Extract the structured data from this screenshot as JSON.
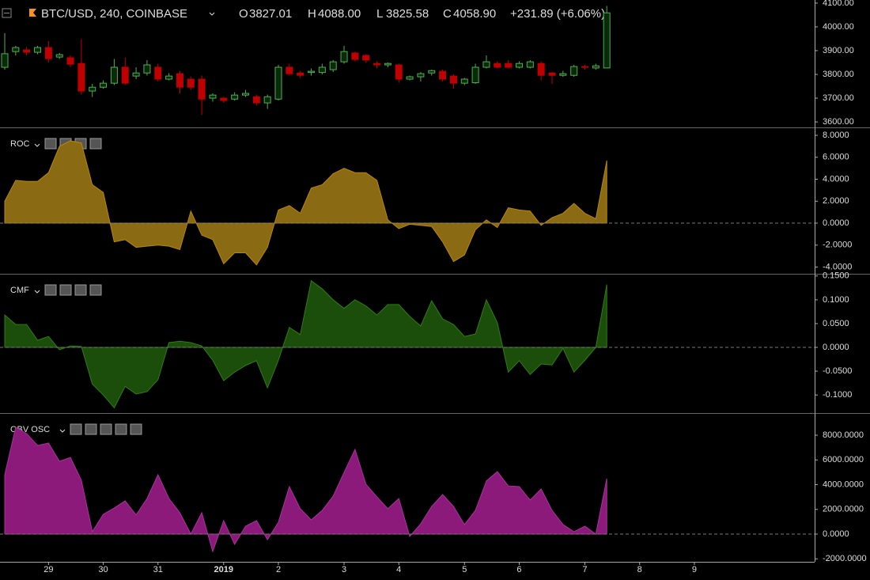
{
  "chart_data": [
    {
      "type": "candlestick",
      "title": "BTC/USD, 240, COINBASE",
      "ohlc": [
        {
          "label": "O",
          "value": "3827.01"
        },
        {
          "label": "H",
          "value": "4088.00"
        },
        {
          "label": "L",
          "value": "3825.58"
        },
        {
          "label": "C",
          "value": "4058.90"
        }
      ],
      "change": "+231.89 (+6.06%)",
      "up_color": "#4caf50",
      "down_color": "#c00000",
      "categories": [
        null,
        null,
        null,
        null,
        "29",
        null,
        null,
        null,
        null,
        "30",
        null,
        null,
        null,
        null,
        "31",
        null,
        null,
        null,
        null,
        null,
        "2019",
        null,
        null,
        null,
        null,
        "2",
        null,
        null,
        null,
        null,
        null,
        "3",
        null,
        null,
        null,
        null,
        "4",
        null,
        null,
        null,
        null,
        null,
        "5",
        null,
        null,
        null,
        null,
        "6",
        null,
        null,
        null,
        null,
        null,
        "7",
        null,
        null,
        null,
        null,
        "8",
        null,
        null,
        null,
        null,
        "9"
      ],
      "open": [
        3830,
        3896,
        3903,
        3893,
        3913,
        3873,
        3870,
        3846,
        3730,
        3746,
        3763,
        3830,
        3793,
        3806,
        3830,
        3780,
        3803,
        3780,
        3780,
        3700,
        3700,
        3696,
        3713,
        3706,
        3680,
        3696,
        3830,
        3806,
        3808,
        3808,
        3820,
        3853,
        3890,
        3880,
        3846,
        3840,
        3840,
        3780,
        3790,
        3806,
        3813,
        3793,
        3763,
        3765,
        3830,
        3846,
        3846,
        3830,
        3830,
        3846,
        3806,
        3796,
        3796,
        3833,
        3827,
        3827.01,
        null,
        null,
        null,
        null,
        null,
        null,
        null,
        null
      ],
      "high": [
        3973,
        3920,
        3915,
        3920,
        3940,
        3890,
        3880,
        3948,
        3760,
        3775,
        3865,
        3870,
        3830,
        3860,
        3845,
        3805,
        3815,
        3790,
        3795,
        3720,
        3705,
        3725,
        3735,
        3715,
        3715,
        3840,
        3845,
        3815,
        3825,
        3845,
        3860,
        3920,
        3895,
        3885,
        3855,
        3850,
        3845,
        3795,
        3810,
        3820,
        3820,
        3800,
        3785,
        3845,
        3880,
        3855,
        3860,
        3855,
        3860,
        3855,
        3810,
        3815,
        3840,
        3840,
        3845,
        4088,
        null,
        null,
        null,
        null,
        null,
        null,
        null,
        null
      ],
      "low": [
        3820,
        3880,
        3880,
        3885,
        3850,
        3865,
        3830,
        3715,
        3705,
        3740,
        3755,
        3755,
        3780,
        3795,
        3770,
        3775,
        3720,
        3735,
        3630,
        3685,
        3680,
        3690,
        3705,
        3670,
        3655,
        3690,
        3795,
        3785,
        3795,
        3800,
        3810,
        3845,
        3855,
        3850,
        3825,
        3830,
        3765,
        3775,
        3770,
        3795,
        3770,
        3740,
        3755,
        3760,
        3825,
        3825,
        3825,
        3825,
        3825,
        3775,
        3760,
        3790,
        3790,
        3820,
        3820,
        3825.58,
        null,
        null,
        null,
        null,
        null,
        null,
        null,
        null
      ],
      "close": [
        3887,
        3913,
        3893,
        3913,
        3866,
        3883,
        3843,
        3730,
        3746,
        3763,
        3830,
        3763,
        3806,
        3840,
        3780,
        3793,
        3746,
        3746,
        3696,
        3713,
        3690,
        3713,
        3720,
        3680,
        3706,
        3830,
        3803,
        3796,
        3813,
        3830,
        3853,
        3896,
        3863,
        3860,
        3840,
        3846,
        3780,
        3790,
        3803,
        3816,
        3780,
        3763,
        3780,
        3830,
        3853,
        3830,
        3830,
        3846,
        3853,
        3796,
        3796,
        3803,
        3833,
        3830,
        3836,
        4058.9,
        null,
        null,
        null,
        null,
        null,
        null,
        null,
        null
      ],
      "ylim": [
        3577,
        4113
      ],
      "yticks": [
        {
          "value": 4100,
          "label": "4100.00"
        },
        {
          "value": 4000,
          "label": "4000.00"
        },
        {
          "value": 3900,
          "label": "3900.00"
        },
        {
          "value": 3800,
          "label": "3800.00"
        },
        {
          "value": 3700,
          "label": "3700.00"
        },
        {
          "value": 3600,
          "label": "3600.00"
        }
      ]
    },
    {
      "type": "area",
      "title": "ROC",
      "color": "#8a6a12",
      "line_color": "#b8860b",
      "values": [
        2.0,
        3.9,
        3.8,
        3.8,
        4.6,
        7.0,
        7.5,
        7.3,
        3.5,
        2.8,
        -1.7,
        -1.5,
        -2.2,
        -2.1,
        -2.0,
        -2.1,
        -2.4,
        1.1,
        -1.1,
        -1.5,
        -3.7,
        -2.7,
        -2.7,
        -3.8,
        -2.2,
        1.2,
        1.6,
        0.9,
        3.2,
        3.5,
        4.5,
        5.0,
        4.6,
        4.6,
        3.9,
        0.3,
        -0.5,
        -0.1,
        -0.2,
        -0.3,
        -1.7,
        -3.5,
        -2.9,
        -0.6,
        0.3,
        -0.4,
        1.4,
        1.2,
        1.1,
        -0.2,
        0.5,
        0.9,
        1.8,
        0.9,
        0.4,
        5.7
      ],
      "ylim": [
        -4.61,
        8.65
      ],
      "yticks": [
        {
          "value": 8,
          "label": "8.0000"
        },
        {
          "value": 6,
          "label": "6.0000"
        },
        {
          "value": 4,
          "label": "4.0000"
        },
        {
          "value": 2,
          "label": "2.0000"
        },
        {
          "value": 0,
          "label": "0.0000"
        },
        {
          "value": -2,
          "label": "-2.0000"
        },
        {
          "value": -4,
          "label": "-4.0000"
        }
      ]
    },
    {
      "type": "area",
      "title": "CMF",
      "color": "#1b4d0b",
      "line_color": "#2e7d12",
      "values": [
        0.068,
        0.048,
        0.048,
        0.015,
        0.023,
        -0.005,
        0.003,
        0.002,
        -0.077,
        -0.1,
        -0.127,
        -0.082,
        -0.098,
        -0.093,
        -0.068,
        0.01,
        0.013,
        0.01,
        0.003,
        -0.027,
        -0.07,
        -0.052,
        -0.038,
        -0.028,
        -0.085,
        -0.027,
        0.042,
        0.027,
        0.14,
        0.123,
        0.1,
        0.082,
        0.1,
        0.087,
        0.068,
        0.09,
        0.09,
        0.065,
        0.045,
        0.098,
        0.06,
        0.048,
        0.023,
        0.028,
        0.1,
        0.052,
        -0.052,
        -0.028,
        -0.057,
        -0.035,
        -0.037,
        -0.002,
        -0.052,
        -0.027,
        0.0,
        0.132
      ],
      "ylim": [
        -0.138,
        0.153
      ],
      "yticks": [
        {
          "value": 0.15,
          "label": "0.1500"
        },
        {
          "value": 0.1,
          "label": "0.1000"
        },
        {
          "value": 0.05,
          "label": "0.0500"
        },
        {
          "value": 0,
          "label": "0.0000"
        },
        {
          "value": -0.05,
          "label": "-0.0500"
        },
        {
          "value": -0.1,
          "label": "-0.1000"
        }
      ]
    },
    {
      "type": "area",
      "title": "OBV OSC",
      "color": "#8b1a7a",
      "line_color": "#a8329a",
      "values": [
        4800,
        8640,
        8130,
        7170,
        7360,
        5890,
        6200,
        4350,
        190,
        1600,
        2110,
        2690,
        1540,
        2880,
        4800,
        2880,
        1730,
        0,
        1730,
        -1410,
        1090,
        -830,
        640,
        1090,
        -450,
        960,
        3840,
        2050,
        1150,
        1920,
        3070,
        4990,
        6850,
        4030,
        3010,
        2050,
        2880,
        -190,
        830,
        2240,
        3200,
        2240,
        770,
        1920,
        4290,
        5060,
        3900,
        3840,
        2750,
        3650,
        1920,
        770,
        190,
        640,
        0,
        4480
      ],
      "ylim": [
        -2240,
        9728
      ],
      "yticks": [
        {
          "value": 8000,
          "label": "8000.0000"
        },
        {
          "value": 6000,
          "label": "6000.0000"
        },
        {
          "value": 4000,
          "label": "4000.0000"
        },
        {
          "value": 2000,
          "label": "2000.0000"
        },
        {
          "value": 0,
          "label": "0.0000"
        },
        {
          "value": -2000,
          "label": "-2000.0000"
        }
      ]
    }
  ]
}
